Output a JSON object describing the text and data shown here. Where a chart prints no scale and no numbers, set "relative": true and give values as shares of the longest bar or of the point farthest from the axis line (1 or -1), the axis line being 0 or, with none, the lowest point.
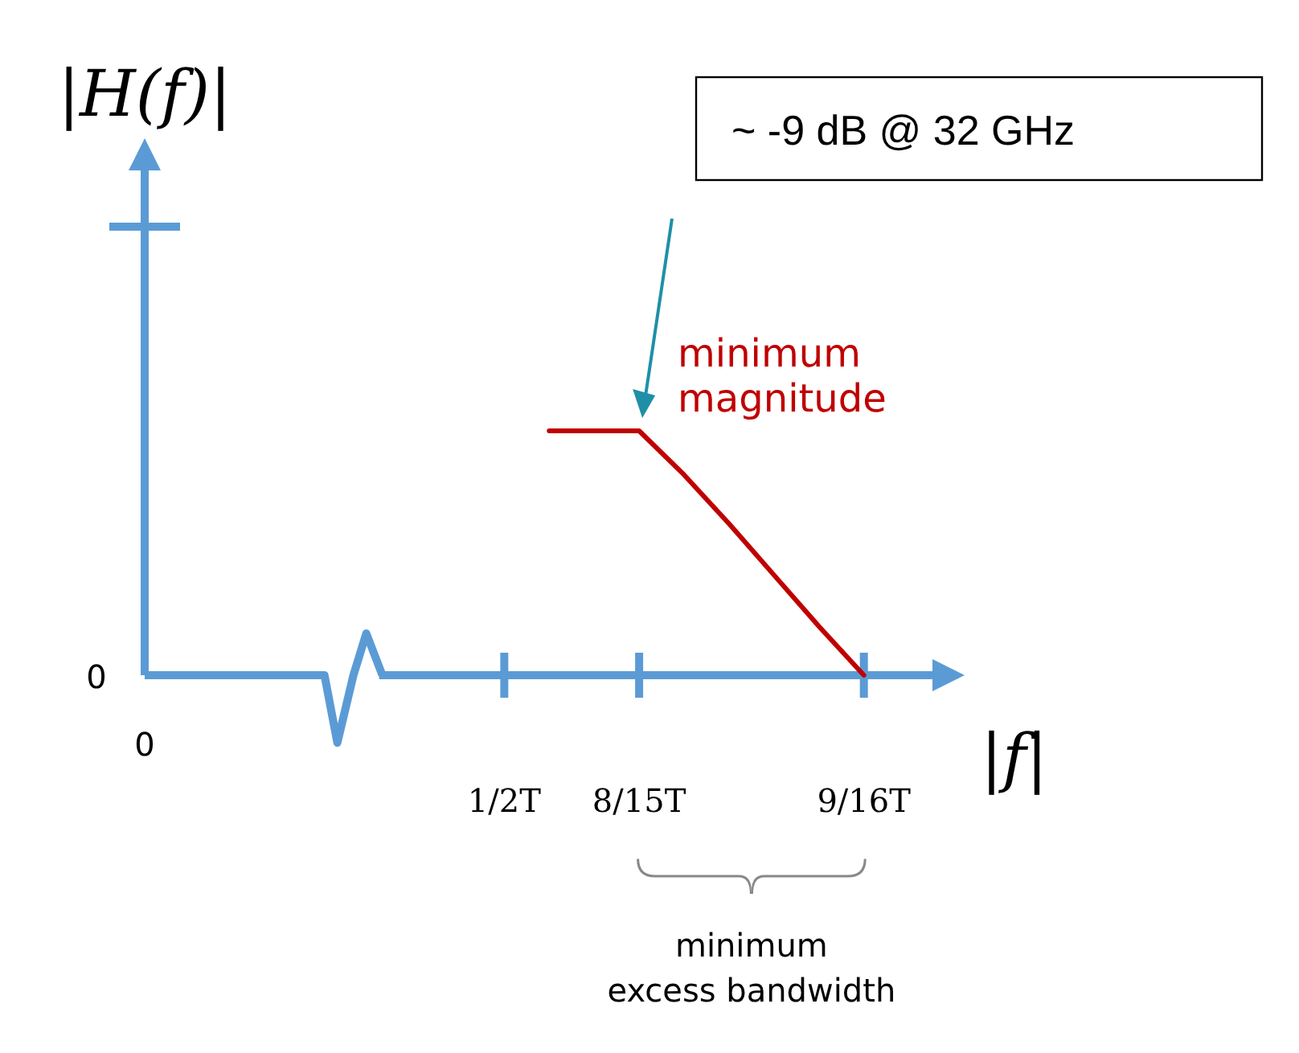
{
  "chart_data": {
    "type": "line",
    "relative": true,
    "xlabel": "|f|",
    "ylabel": "|H(f)|",
    "categories": [
      "0",
      null,
      null,
      null,
      null,
      null,
      null,
      null,
      "1/2T",
      null,
      null,
      "8/15T",
      null,
      null,
      null,
      null,
      "9/16T",
      null
    ],
    "series": [
      {
        "name": "minimum magnitude",
        "color": "#c00000",
        "values": [
          null,
          null,
          null,
          null,
          null,
          null,
          null,
          null,
          null,
          1,
          1,
          1,
          0.82,
          0.62,
          0.41,
          0.2,
          0,
          null
        ]
      }
    ],
    "annotations": [
      "~ -9 dB @ 32 GHz",
      "0",
      "minimum excess bandwidth"
    ],
    "legend": false,
    "grid": false,
    "marker": "none",
    "line_style": "solid"
  }
}
